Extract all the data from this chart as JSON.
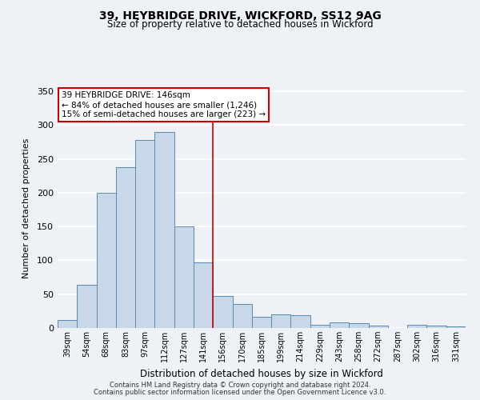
{
  "title1": "39, HEYBRIDGE DRIVE, WICKFORD, SS12 9AG",
  "title2": "Size of property relative to detached houses in Wickford",
  "xlabel": "Distribution of detached houses by size in Wickford",
  "ylabel": "Number of detached properties",
  "bar_labels": [
    "39sqm",
    "54sqm",
    "68sqm",
    "83sqm",
    "97sqm",
    "112sqm",
    "127sqm",
    "141sqm",
    "156sqm",
    "170sqm",
    "185sqm",
    "199sqm",
    "214sqm",
    "229sqm",
    "243sqm",
    "258sqm",
    "272sqm",
    "287sqm",
    "302sqm",
    "316sqm",
    "331sqm"
  ],
  "bar_values": [
    12,
    64,
    200,
    238,
    278,
    290,
    150,
    97,
    47,
    35,
    17,
    20,
    19,
    5,
    8,
    7,
    4,
    0,
    5,
    4,
    2
  ],
  "bar_color": "#c8d8e8",
  "bar_edge_color": "#5a8ab0",
  "vline_x": 7.5,
  "vline_color": "#cc0000",
  "annotation_title": "39 HEYBRIDGE DRIVE: 146sqm",
  "annotation_line1": "← 84% of detached houses are smaller (1,246)",
  "annotation_line2": "15% of semi-detached houses are larger (223) →",
  "annotation_box_color": "#ffffff",
  "annotation_box_edge": "#cc0000",
  "ylim": [
    0,
    355
  ],
  "yticks": [
    0,
    50,
    100,
    150,
    200,
    250,
    300,
    350
  ],
  "background_color": "#eef2f7",
  "grid_color": "#ffffff",
  "footer1": "Contains HM Land Registry data © Crown copyright and database right 2024.",
  "footer2": "Contains public sector information licensed under the Open Government Licence v3.0."
}
